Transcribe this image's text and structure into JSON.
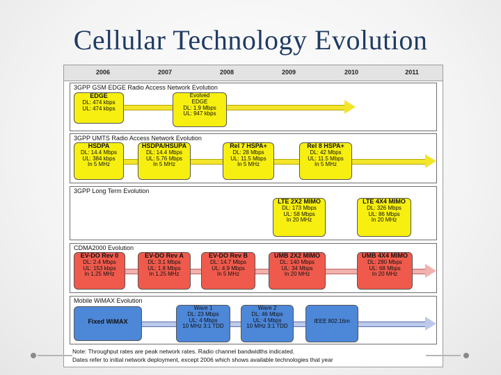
{
  "slide": {
    "title": "Cellular Technology Evolution"
  },
  "years": [
    "2006",
    "2007",
    "2008",
    "2009",
    "2010",
    "2011"
  ],
  "sections": {
    "gsm": {
      "title": "3GPP GSM EDGE Radio Access Network Evolution",
      "boxes": [
        {
          "title": "EDGE",
          "lines": [
            "DL: 474 kbps",
            "UL: 474 kbps"
          ]
        },
        {
          "title": "Evolved",
          "lines": [
            "EDGE",
            "DL: 1.9 Mbps",
            "UL: 947 kbps"
          ]
        }
      ]
    },
    "umts": {
      "title": "3GPP UMTS Radio Access Network Evolution",
      "boxes": [
        {
          "title": "HSDPA",
          "lines": [
            "DL: 14.4 Mbps",
            "UL: 384 kbps",
            "In 5 MHz"
          ]
        },
        {
          "title": "HSDPA/HSUPA",
          "lines": [
            "DL: 14.4 Mbps",
            "UL: 5.76 Mbps",
            "In 5 MHz"
          ]
        },
        {
          "title": "Rel 7 HSPA+",
          "lines": [
            "DL: 28 Mbps",
            "UL: 11.5 Mbps",
            "In 5 MHz"
          ]
        },
        {
          "title": "Rel 8 HSPA+",
          "lines": [
            "DL: 42 Mbps",
            "UL: 11.5 Mbps",
            "In 5 MHz"
          ]
        }
      ]
    },
    "lte": {
      "title": "3GPP Long Term Evolution",
      "boxes": [
        {
          "title": "LTE 2X2 MIMO",
          "lines": [
            "DL: 173 Mbps",
            "UL: 58 Mbps",
            "In 20 MHz"
          ]
        },
        {
          "title": "LTE 4X4 MIMO",
          "lines": [
            "DL: 326 Mbps",
            "UL: 86 Mbps",
            "In 20 MHz"
          ]
        }
      ]
    },
    "cdma": {
      "title": "CDMA2000 Evolution",
      "boxes": [
        {
          "title": "EV-DO Rev 0",
          "lines": [
            "DL: 2.4 Mbps",
            "UL: 153 kbps",
            "In 1.25 MHz"
          ]
        },
        {
          "title": "EV-DO Rev A",
          "lines": [
            "DL: 3.1 Mbps",
            "UL: 1.8 Mbps",
            "In 1.25 MHz"
          ]
        },
        {
          "title": "EV-DO Rev B",
          "lines": [
            "DL: 14.7 Mbps",
            "UL: 4.9 Mbps",
            "In 5 MHz"
          ]
        },
        {
          "title": "UMB 2X2 MIMO",
          "lines": [
            "DL: 140 Mbps",
            "UL: 34 Mbps",
            "In 20 MHz"
          ]
        },
        {
          "title": "UMB 4X4 MIMO",
          "lines": [
            "DL: 280 Mbps",
            "UL: 68 Mbps",
            "In 20 MHz"
          ]
        }
      ]
    },
    "wimax": {
      "title": "Mobile WiMAX Evolution",
      "boxes": [
        {
          "title": "Fixed WiMAX",
          "lines": []
        },
        {
          "title": "Wave 1",
          "lines": [
            "DL: 23 Mbps",
            "UL: 4 Mbps",
            "10 MHz 3:1 TDD"
          ]
        },
        {
          "title": "Wave 2",
          "lines": [
            "DL: 46 Mbps",
            "UL: 4 Mbps",
            "10 MHz 3:1 TDD"
          ]
        },
        {
          "title": "IEEE 802.16m",
          "lines": []
        }
      ]
    }
  },
  "notes": [
    "Note: Throughput rates are peak network rates. Radio channel bandwidths indicated.",
    "Dates refer to initial network deployment, except 2006 which shows available technologies that year"
  ],
  "colors": {
    "yellow": "#f7ef10",
    "red": "#ef5a4c",
    "blue": "#4c87d8",
    "title": "#1f3b63"
  }
}
